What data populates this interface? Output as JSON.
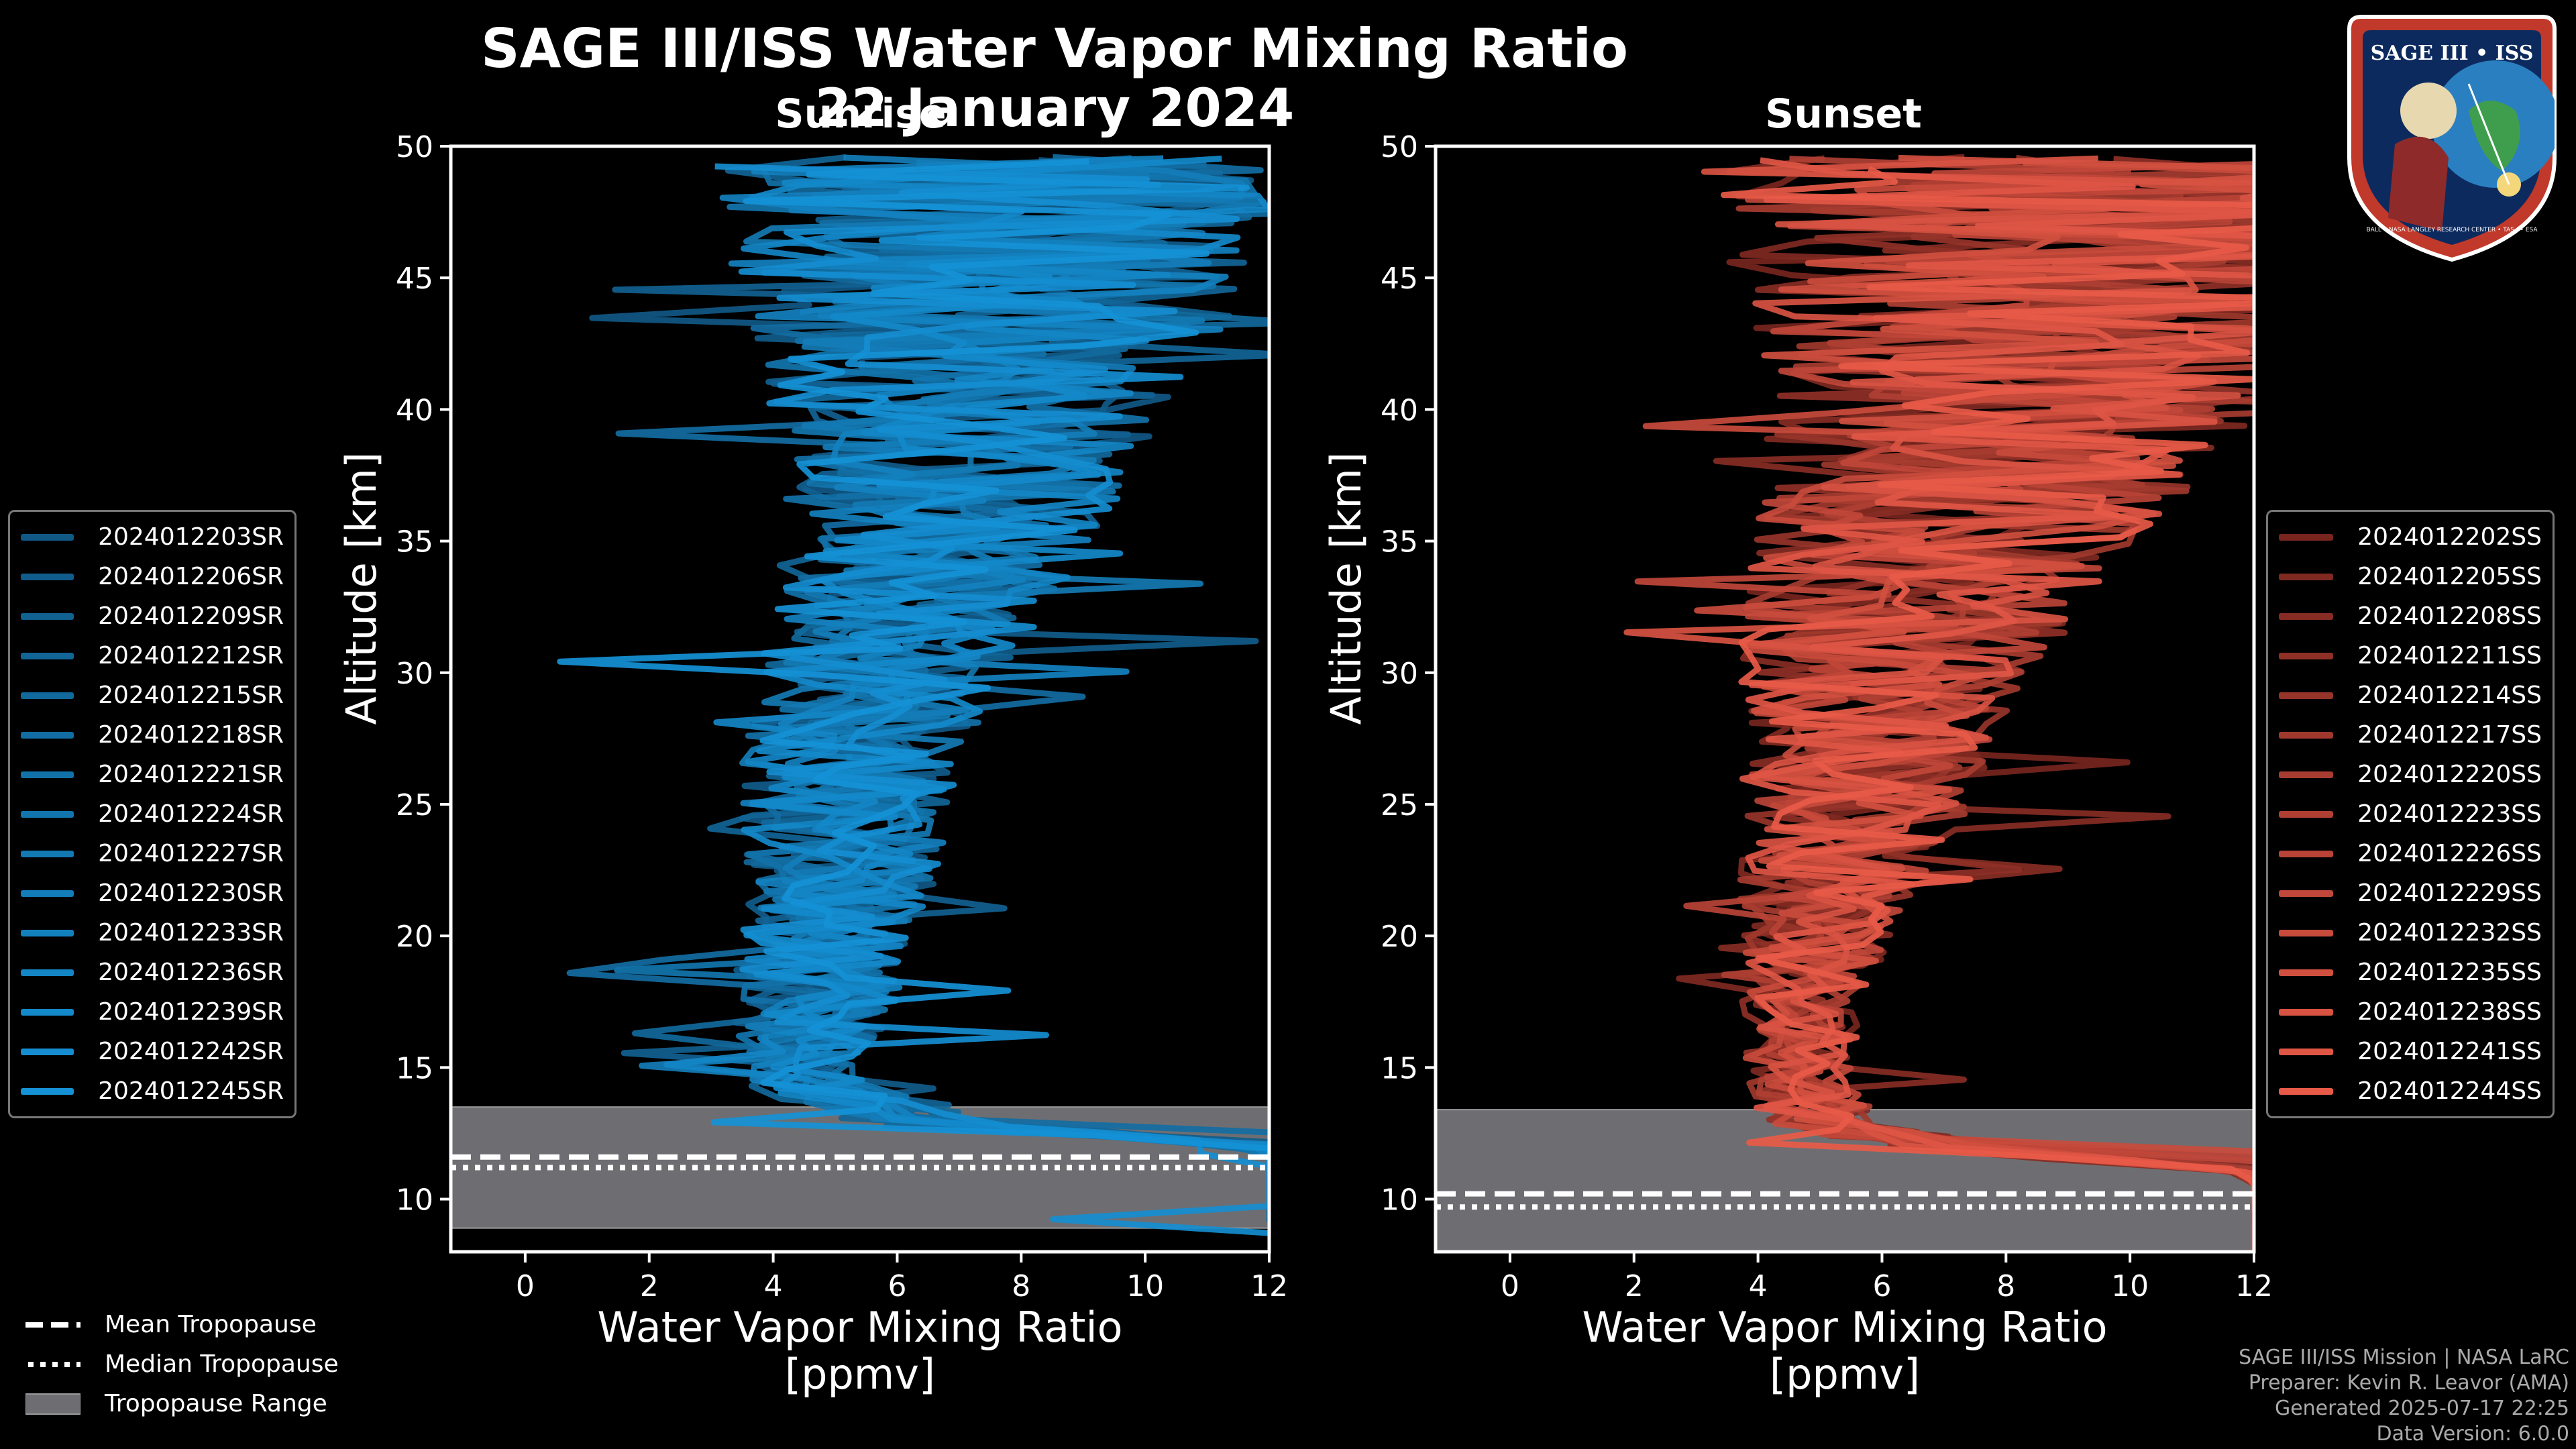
{
  "title": "SAGE III/ISS Water Vapor Mixing Ratio",
  "date": "22 January 2024",
  "panels": {
    "sunrise_title": "Sunrise",
    "sunset_title": "Sunset"
  },
  "colors": {
    "sunrise_dark": "#0d3a5a",
    "sunrise_bright": "#1591d6",
    "sunset_dark": "#3a0808",
    "sunset_bright": "#e85a48",
    "tropo_range": "#6e6e72"
  },
  "chart_data": [
    {
      "type": "line",
      "title": "Sunrise",
      "xlabel": "Water Vapor Mixing Ratio [ppmv]",
      "ylabel": "Altitude [km]",
      "xlim": [
        -1.2,
        12
      ],
      "ylim": [
        8,
        50
      ],
      "xticks": [
        "0",
        "2",
        "4",
        "6",
        "8",
        "10",
        "12"
      ],
      "yticks": [
        "10",
        "15",
        "20",
        "25",
        "30",
        "35",
        "40",
        "45",
        "50"
      ],
      "legend_position": "left",
      "series_names": [
        "2024012203SR",
        "2024012206SR",
        "2024012209SR",
        "2024012212SR",
        "2024012215SR",
        "2024012218SR",
        "2024012221SR",
        "2024012224SR",
        "2024012227SR",
        "2024012230SR",
        "2024012233SR",
        "2024012236SR",
        "2024012239SR",
        "2024012242SR",
        "2024012245SR"
      ],
      "median_profile": {
        "altitude": [
          12,
          13,
          14,
          15,
          17,
          19,
          21,
          23,
          25,
          27,
          29,
          31,
          33,
          35,
          37,
          39,
          41,
          43,
          45,
          47,
          49
        ],
        "ppmv": [
          12,
          6.5,
          4.8,
          4.5,
          4.6,
          4.8,
          5.0,
          5.1,
          5.2,
          5.3,
          5.6,
          5.9,
          6.3,
          6.6,
          6.9,
          7.1,
          7.2,
          7.4,
          7.6,
          7.6,
          7.5
        ],
        "spread_ppmv": [
          0,
          1.5,
          1.2,
          1.0,
          1.3,
          1.4,
          1.5,
          1.6,
          1.7,
          1.8,
          1.9,
          2.1,
          2.3,
          2.5,
          2.8,
          3.0,
          3.4,
          3.8,
          4.2,
          4.5,
          4.5
        ]
      },
      "tropopause": {
        "mean_km": 11.6,
        "median_km": 11.2,
        "range_km": [
          8.9,
          13.5
        ]
      }
    },
    {
      "type": "line",
      "title": "Sunset",
      "xlabel": "Water Vapor Mixing Ratio [ppmv]",
      "ylabel": "Altitude [km]",
      "xlim": [
        -1.2,
        12
      ],
      "ylim": [
        8,
        50
      ],
      "xticks": [
        "0",
        "2",
        "4",
        "6",
        "8",
        "10",
        "12"
      ],
      "yticks": [
        "10",
        "15",
        "20",
        "25",
        "30",
        "35",
        "40",
        "45",
        "50"
      ],
      "legend_position": "right",
      "series_names": [
        "2024012202SS",
        "2024012205SS",
        "2024012208SS",
        "2024012211SS",
        "2024012214SS",
        "2024012217SS",
        "2024012220SS",
        "2024012223SS",
        "2024012226SS",
        "2024012229SS",
        "2024012232SS",
        "2024012235SS",
        "2024012238SS",
        "2024012241SS",
        "2024012244SS"
      ],
      "median_profile": {
        "altitude": [
          11,
          12,
          13,
          15,
          17,
          19,
          21,
          23,
          25,
          27,
          29,
          31,
          33,
          35,
          37,
          39,
          41,
          43,
          45,
          47,
          49
        ],
        "ppmv": [
          12,
          7.0,
          5.0,
          4.6,
          4.7,
          4.9,
          5.0,
          5.3,
          5.6,
          5.8,
          6.0,
          6.2,
          6.6,
          7.0,
          7.5,
          8.0,
          8.5,
          8.8,
          9.0,
          9.0,
          9.0
        ],
        "spread_ppmv": [
          0,
          1.5,
          1.0,
          0.9,
          1.0,
          1.1,
          1.3,
          1.6,
          1.9,
          2.1,
          2.3,
          2.5,
          2.8,
          3.1,
          3.5,
          4.0,
          4.5,
          5.0,
          5.5,
          5.8,
          6.0
        ]
      },
      "tropopause": {
        "mean_km": 10.2,
        "median_km": 9.7,
        "range_km": [
          8.0,
          13.4
        ]
      }
    }
  ],
  "bottom_legend": {
    "mean": "Mean Tropopause",
    "median": "Median Tropopause",
    "range": "Tropopause Range"
  },
  "credits": {
    "line1": "SAGE III/ISS Mission | NASA LaRC",
    "line2": "Preparer: Kevin R. Leavor (AMA)",
    "line3": "Generated 2025-07-17 22:25",
    "line4": "Data Version: 6.0.0"
  },
  "logo": {
    "top_text": "SAGE III • ISS",
    "ring_text": "BALL • NASA LANGLEY RESEARCH CENTER • TAS-I • ESA"
  }
}
